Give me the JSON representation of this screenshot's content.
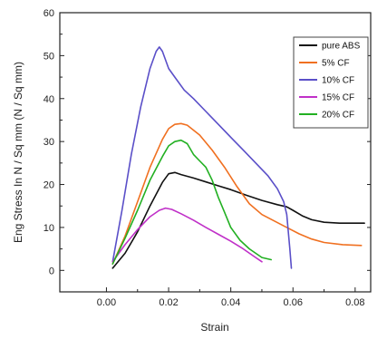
{
  "chart_data": {
    "type": "line",
    "title": "",
    "xlabel": "Strain",
    "ylabel": "Eng Stress In N / Sq mm (N / Sq mm)",
    "xlim": [
      -0.015,
      0.085
    ],
    "ylim": [
      -5,
      60
    ],
    "xticks": [
      0.0,
      0.02,
      0.04,
      0.06,
      0.08
    ],
    "xtick_labels": [
      "0.00",
      "0.02",
      "0.04",
      "0.06",
      "0.08"
    ],
    "yticks": [
      0,
      10,
      20,
      30,
      40,
      50,
      60
    ],
    "ytick_labels": [
      "0",
      "10",
      "20",
      "30",
      "40",
      "50",
      "60"
    ],
    "grid": false,
    "legend_position": "top-right",
    "series": [
      {
        "name": "pure ABS",
        "color": "#111111",
        "x": [
          0.002,
          0.006,
          0.01,
          0.014,
          0.018,
          0.02,
          0.022,
          0.024,
          0.028,
          0.032,
          0.036,
          0.04,
          0.045,
          0.05,
          0.055,
          0.058,
          0.06,
          0.063,
          0.066,
          0.07,
          0.075,
          0.08,
          0.083
        ],
        "y": [
          0.5,
          4,
          9,
          15,
          20.5,
          22.5,
          22.8,
          22.3,
          21.5,
          20.6,
          19.7,
          18.8,
          17.5,
          16.3,
          15.3,
          14.8,
          14.0,
          12.7,
          11.8,
          11.2,
          11.0,
          11.0,
          11.0
        ]
      },
      {
        "name": "5% CF",
        "color": "#f07020",
        "x": [
          0.002,
          0.006,
          0.01,
          0.014,
          0.018,
          0.02,
          0.022,
          0.024,
          0.026,
          0.03,
          0.034,
          0.038,
          0.042,
          0.046,
          0.05,
          0.054,
          0.058,
          0.062,
          0.066,
          0.07,
          0.076,
          0.082
        ],
        "y": [
          1.5,
          8,
          16,
          24,
          30.5,
          33,
          34,
          34.2,
          33.8,
          31.5,
          28,
          24,
          19.5,
          15.5,
          13,
          11.5,
          10,
          8.5,
          7.3,
          6.5,
          6.0,
          5.8
        ]
      },
      {
        "name": "10% CF",
        "color": "#5a4fc8",
        "x": [
          0.002,
          0.005,
          0.008,
          0.011,
          0.014,
          0.016,
          0.017,
          0.018,
          0.02,
          0.022,
          0.025,
          0.028,
          0.032,
          0.036,
          0.04,
          0.044,
          0.048,
          0.052,
          0.055,
          0.057,
          0.058,
          0.059,
          0.0595
        ],
        "y": [
          2,
          14,
          27,
          38,
          47,
          51,
          52,
          51,
          47,
          45,
          42,
          40,
          37,
          34,
          31,
          28,
          25,
          22,
          19,
          16,
          13,
          5,
          0.5
        ]
      },
      {
        "name": "15% CF",
        "color": "#c030c8",
        "x": [
          0.002,
          0.006,
          0.01,
          0.014,
          0.017,
          0.019,
          0.021,
          0.024,
          0.028,
          0.032,
          0.036,
          0.04,
          0.044,
          0.048,
          0.05
        ],
        "y": [
          2,
          6,
          9.5,
          12.5,
          14,
          14.5,
          14.2,
          13.2,
          11.7,
          10,
          8.4,
          6.8,
          5,
          3,
          2
        ]
      },
      {
        "name": "20% CF",
        "color": "#22b022",
        "x": [
          0.002,
          0.006,
          0.01,
          0.014,
          0.018,
          0.02,
          0.022,
          0.024,
          0.026,
          0.028,
          0.03,
          0.032,
          0.034,
          0.036,
          0.038,
          0.04,
          0.043,
          0.046,
          0.05,
          0.053
        ],
        "y": [
          1.5,
          7.5,
          14,
          21,
          26.5,
          29,
          30,
          30.3,
          29.5,
          27,
          25.5,
          24,
          21,
          17,
          13.5,
          10,
          7,
          5,
          3,
          2.5
        ]
      }
    ]
  }
}
